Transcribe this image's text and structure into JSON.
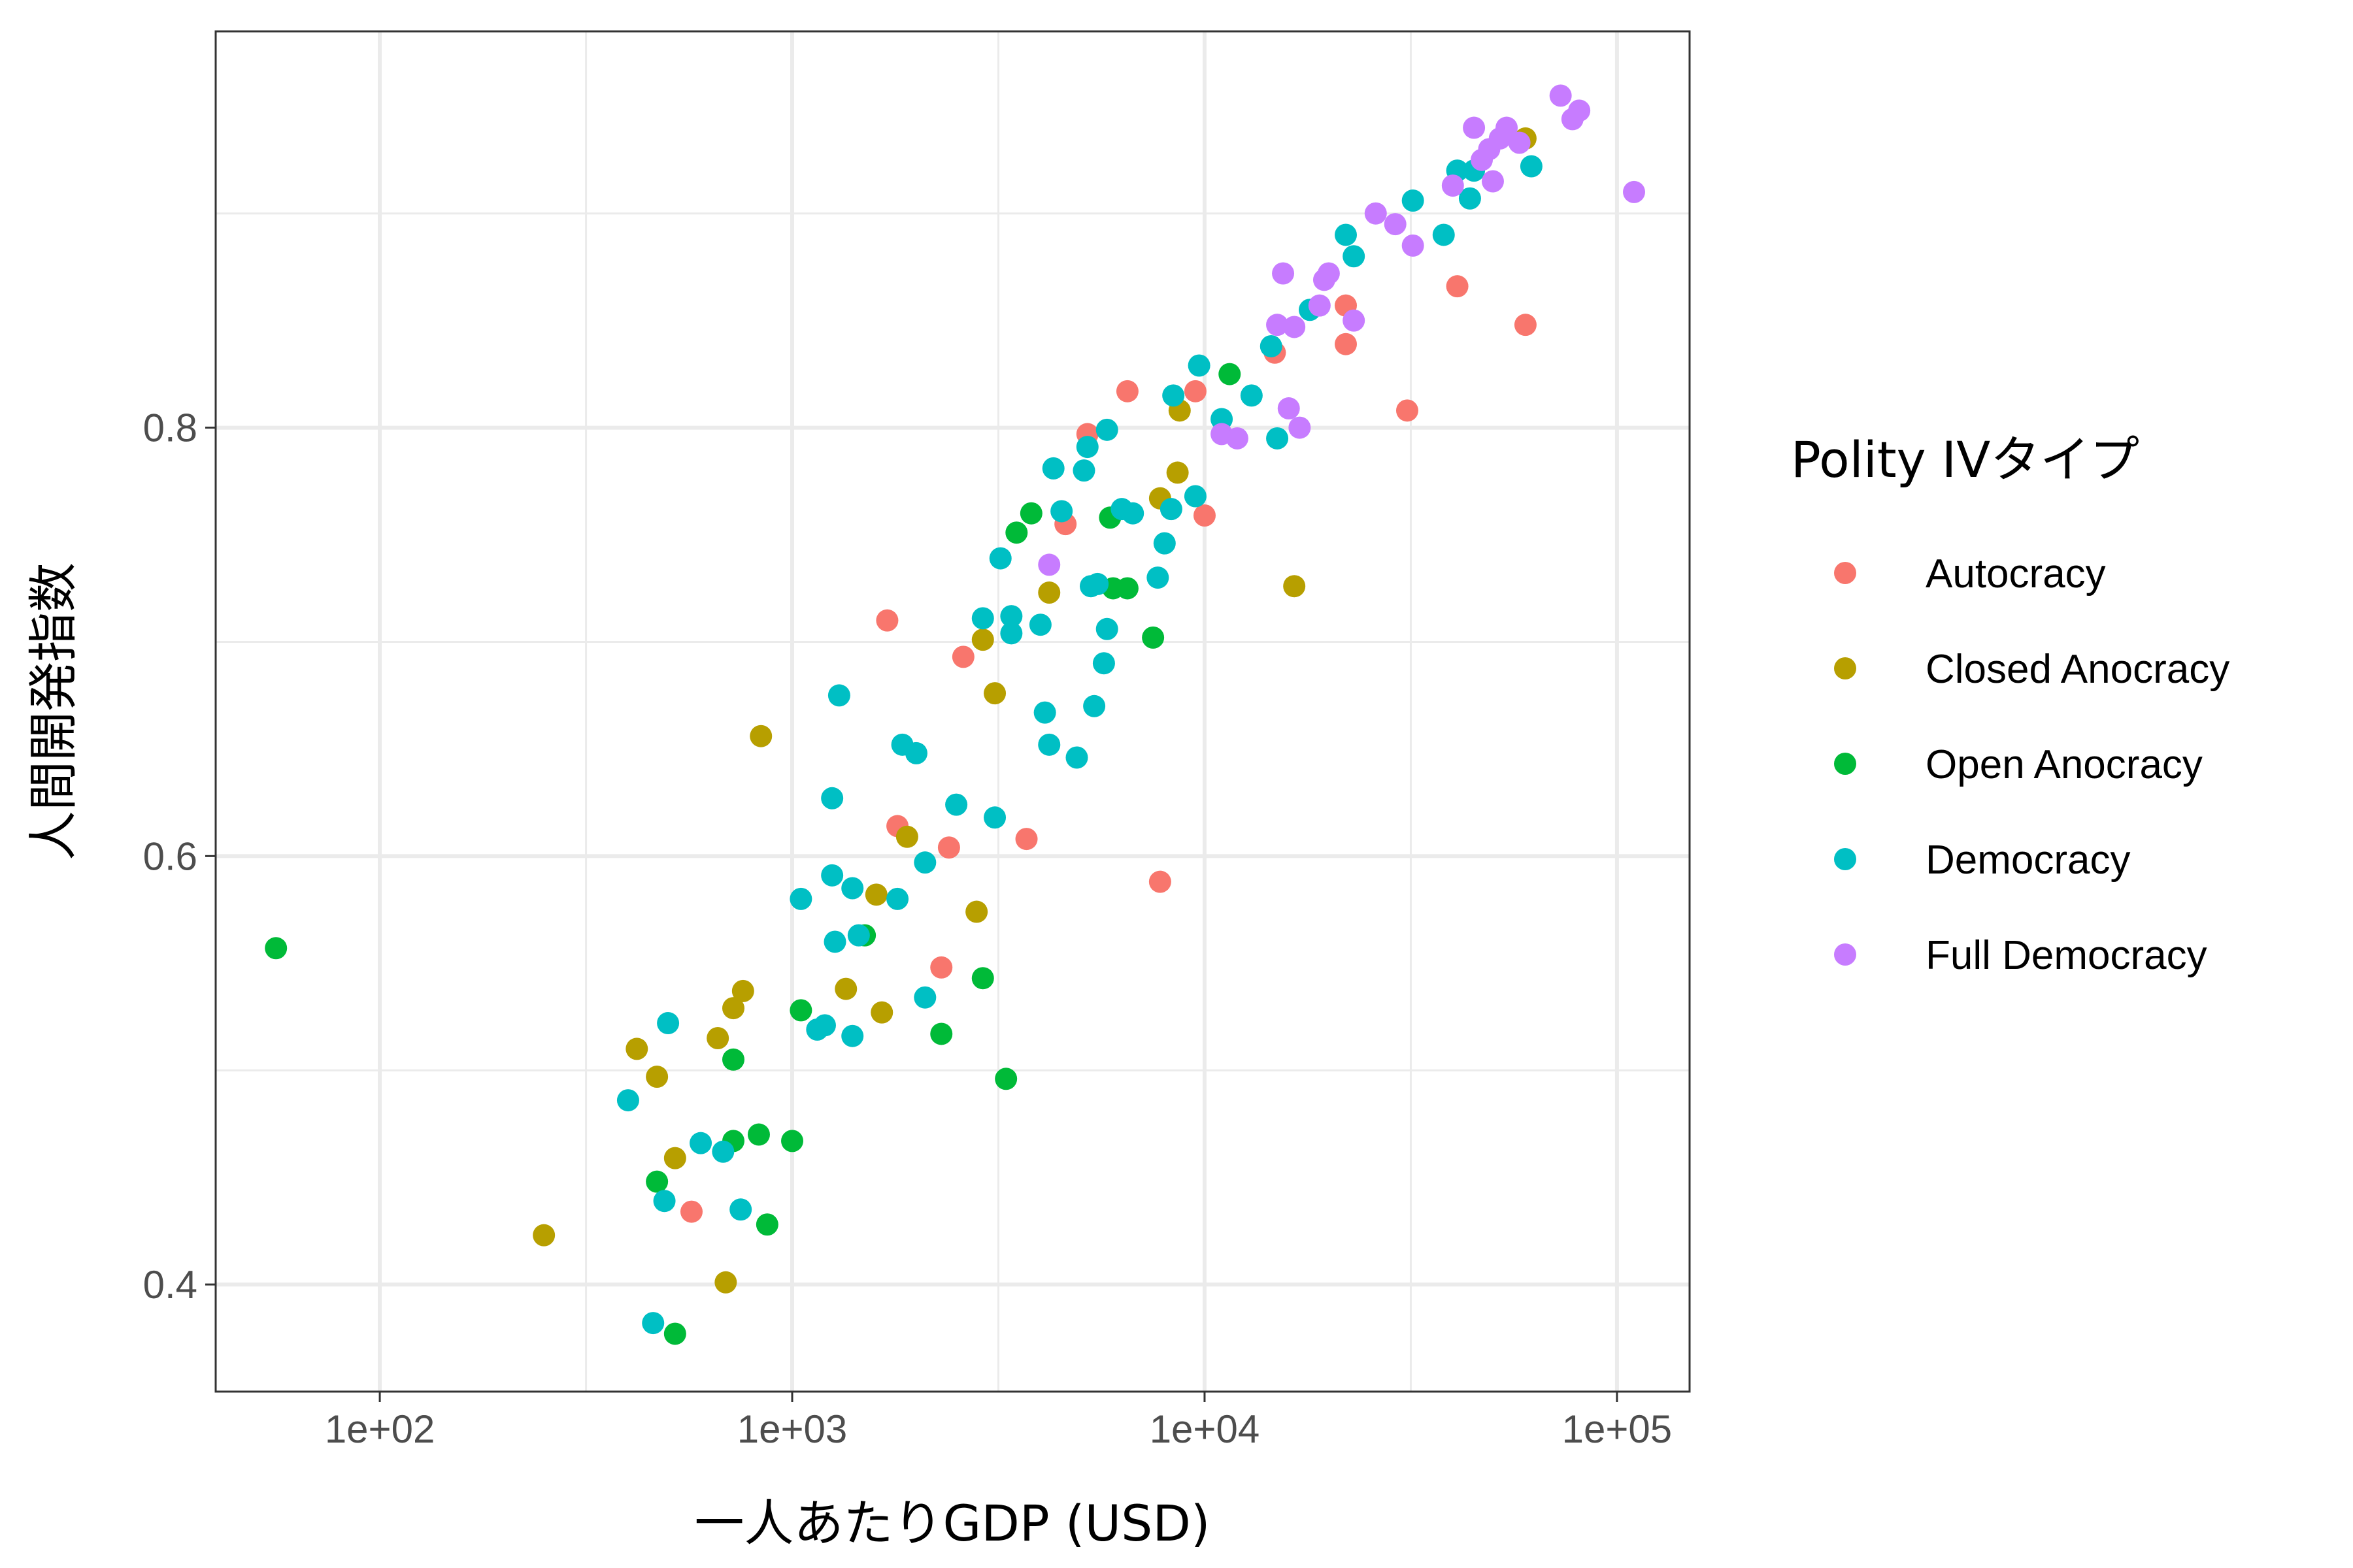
{
  "chart_data": {
    "type": "scatter",
    "xlabel": "一人あたりGDP (USD)",
    "ylabel": "人間開発指数",
    "x_scale": "log10",
    "xlim": [
      40,
      150000
    ],
    "ylim": [
      0.35,
      0.985
    ],
    "x_ticks": [
      100,
      1000,
      10000,
      100000
    ],
    "x_tick_labels": [
      "1e+02",
      "1e+03",
      "1e+04",
      "1e+05"
    ],
    "x_minor_ticks": [
      316.23,
      3162.28,
      31622.78
    ],
    "y_ticks": [
      0.4,
      0.6,
      0.8
    ],
    "y_tick_labels": [
      "0.4",
      "0.6",
      "0.8"
    ],
    "y_minor_ticks": [
      0.5,
      0.7,
      0.9
    ],
    "grid": true,
    "legend_title": "Polity IVタイプ",
    "legend_position": "right",
    "series": [
      {
        "name": "Autocracy",
        "color": "#F8766D",
        "points": [
          [
            570,
            0.434
          ],
          [
            1700,
            0.71
          ],
          [
            1800,
            0.614
          ],
          [
            2300,
            0.548
          ],
          [
            2400,
            0.604
          ],
          [
            2600,
            0.693
          ],
          [
            3700,
            0.608
          ],
          [
            4600,
            0.755
          ],
          [
            5200,
            0.797
          ],
          [
            6500,
            0.817
          ],
          [
            9500,
            0.817
          ],
          [
            10000,
            0.759
          ],
          [
            7800,
            0.588
          ],
          [
            14800,
            0.835
          ],
          [
            22000,
            0.839
          ],
          [
            22000,
            0.857
          ],
          [
            31000,
            0.808
          ],
          [
            41000,
            0.866
          ],
          [
            60000,
            0.848
          ]
        ]
      },
      {
        "name": "Closed Anocracy",
        "color": "#B79F00",
        "points": [
          [
            250,
            0.423
          ],
          [
            420,
            0.51
          ],
          [
            470,
            0.497
          ],
          [
            520,
            0.459
          ],
          [
            660,
            0.515
          ],
          [
            690,
            0.401
          ],
          [
            720,
            0.529
          ],
          [
            760,
            0.537
          ],
          [
            840,
            0.656
          ],
          [
            1350,
            0.538
          ],
          [
            1600,
            0.582
          ],
          [
            1650,
            0.527
          ],
          [
            1900,
            0.609
          ],
          [
            2800,
            0.574
          ],
          [
            2900,
            0.701
          ],
          [
            3100,
            0.676
          ],
          [
            4200,
            0.723
          ],
          [
            7800,
            0.767
          ],
          [
            8600,
            0.779
          ],
          [
            8700,
            0.808
          ],
          [
            16500,
            0.726
          ],
          [
            60000,
            0.935
          ]
        ]
      },
      {
        "name": "Open Anocracy",
        "color": "#00BA38",
        "points": [
          [
            56,
            0.557
          ],
          [
            470,
            0.448
          ],
          [
            520,
            0.377
          ],
          [
            720,
            0.467
          ],
          [
            720,
            0.505
          ],
          [
            830,
            0.47
          ],
          [
            870,
            0.428
          ],
          [
            1000,
            0.467
          ],
          [
            1050,
            0.528
          ],
          [
            1500,
            0.563
          ],
          [
            2300,
            0.517
          ],
          [
            2900,
            0.543
          ],
          [
            3300,
            0.496
          ],
          [
            3500,
            0.751
          ],
          [
            3800,
            0.76
          ],
          [
            5900,
            0.758
          ],
          [
            6000,
            0.725
          ],
          [
            6500,
            0.725
          ],
          [
            7500,
            0.702
          ],
          [
            11500,
            0.825
          ]
        ]
      },
      {
        "name": "Democracy",
        "color": "#00BFC4",
        "points": [
          [
            400,
            0.486
          ],
          [
            460,
            0.382
          ],
          [
            490,
            0.439
          ],
          [
            500,
            0.522
          ],
          [
            600,
            0.466
          ],
          [
            680,
            0.462
          ],
          [
            750,
            0.435
          ],
          [
            1050,
            0.58
          ],
          [
            1150,
            0.519
          ],
          [
            1200,
            0.521
          ],
          [
            1250,
            0.591
          ],
          [
            1250,
            0.627
          ],
          [
            1270,
            0.56
          ],
          [
            1300,
            0.675
          ],
          [
            1400,
            0.516
          ],
          [
            1400,
            0.585
          ],
          [
            1450,
            0.563
          ],
          [
            1800,
            0.58
          ],
          [
            1850,
            0.652
          ],
          [
            2000,
            0.648
          ],
          [
            2100,
            0.534
          ],
          [
            2100,
            0.597
          ],
          [
            2500,
            0.624
          ],
          [
            2900,
            0.711
          ],
          [
            3100,
            0.618
          ],
          [
            3200,
            0.739
          ],
          [
            3400,
            0.712
          ],
          [
            3400,
            0.704
          ],
          [
            4000,
            0.708
          ],
          [
            4100,
            0.667
          ],
          [
            4200,
            0.652
          ],
          [
            4300,
            0.781
          ],
          [
            4500,
            0.761
          ],
          [
            4900,
            0.646
          ],
          [
            5100,
            0.78
          ],
          [
            5200,
            0.791
          ],
          [
            5300,
            0.726
          ],
          [
            5400,
            0.67
          ],
          [
            5500,
            0.727
          ],
          [
            5700,
            0.69
          ],
          [
            5800,
            0.799
          ],
          [
            5800,
            0.706
          ],
          [
            6300,
            0.762
          ],
          [
            6700,
            0.76
          ],
          [
            7700,
            0.73
          ],
          [
            8000,
            0.746
          ],
          [
            8300,
            0.762
          ],
          [
            8400,
            0.815
          ],
          [
            9500,
            0.768
          ],
          [
            9700,
            0.829
          ],
          [
            11000,
            0.804
          ],
          [
            13000,
            0.815
          ],
          [
            14500,
            0.838
          ],
          [
            15000,
            0.795
          ],
          [
            18000,
            0.855
          ],
          [
            22000,
            0.89
          ],
          [
            23000,
            0.88
          ],
          [
            32000,
            0.906
          ],
          [
            38000,
            0.89
          ],
          [
            41000,
            0.92
          ],
          [
            44000,
            0.907
          ],
          [
            45000,
            0.92
          ],
          [
            62000,
            0.922
          ]
        ]
      },
      {
        "name": "Full Democracy",
        "color": "#C77CFF",
        "points": [
          [
            4200,
            0.736
          ],
          [
            11000,
            0.797
          ],
          [
            12000,
            0.795
          ],
          [
            15000,
            0.848
          ],
          [
            15500,
            0.872
          ],
          [
            16000,
            0.809
          ],
          [
            16500,
            0.847
          ],
          [
            17000,
            0.8
          ],
          [
            19000,
            0.857
          ],
          [
            19500,
            0.869
          ],
          [
            20000,
            0.872
          ],
          [
            23000,
            0.85
          ],
          [
            26000,
            0.9
          ],
          [
            29000,
            0.895
          ],
          [
            32000,
            0.885
          ],
          [
            40000,
            0.913
          ],
          [
            45000,
            0.94
          ],
          [
            47000,
            0.925
          ],
          [
            49000,
            0.93
          ],
          [
            50000,
            0.915
          ],
          [
            52000,
            0.935
          ],
          [
            54000,
            0.94
          ],
          [
            58000,
            0.933
          ],
          [
            73000,
            0.955
          ],
          [
            78000,
            0.944
          ],
          [
            81000,
            0.948
          ],
          [
            110000,
            0.91
          ]
        ]
      }
    ]
  }
}
